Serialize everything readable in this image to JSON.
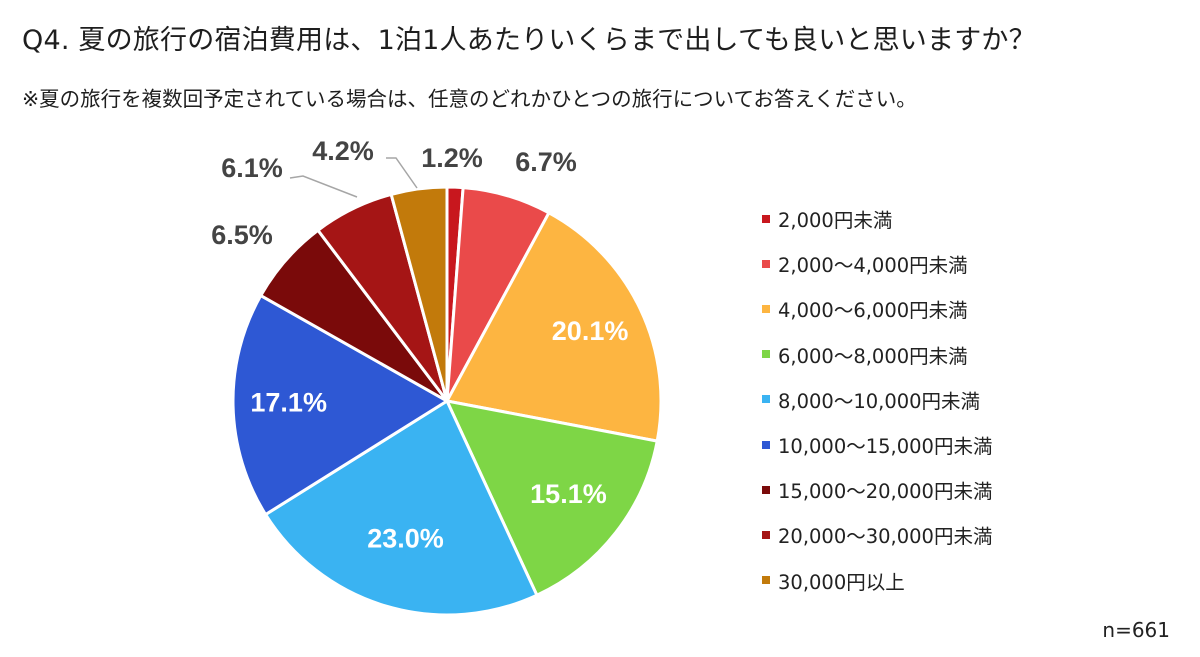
{
  "header": {
    "title": "Q4. 夏の旅行の宿泊費用は、1泊1人あたりいくらまで出しても良いと思いますか？",
    "subtitle": "※夏の旅行を複数回予定されている場合は、任意のどれかひとつの旅行についてお答えください。"
  },
  "chart_data": {
    "type": "pie",
    "title": "Q4. 夏の旅行の宿泊費用は、1泊1人あたりいくらまで出しても良いと思いますか？",
    "subtitle": "※夏の旅行を複数回予定されている場合は、任意のどれかひとつの旅行についてお答えください。",
    "legend_position": "right",
    "sample_size": "n=661",
    "slices": [
      {
        "label": "2,000円未満",
        "value": 1.2,
        "display": "1.2%",
        "color": "#C8171E"
      },
      {
        "label": "2,000～4,000円未満",
        "value": 6.7,
        "display": "6.7%",
        "color": "#EA4A4A"
      },
      {
        "label": "4,000～6,000円未満",
        "value": 20.1,
        "display": "20.1%",
        "color": "#FDB541"
      },
      {
        "label": "6,000～8,000円未満",
        "value": 15.1,
        "display": "15.1%",
        "color": "#7ED646"
      },
      {
        "label": "8,000～10,000円未満",
        "value": 23.0,
        "display": "23.0%",
        "color": "#3AB3F2"
      },
      {
        "label": "10,000～15,000円未満",
        "value": 17.1,
        "display": "17.1%",
        "color": "#2E58D4"
      },
      {
        "label": "15,000～20,000円未満",
        "value": 6.5,
        "display": "6.5%",
        "color": "#7A0A0A"
      },
      {
        "label": "20,000～30,000円未満",
        "value": 6.1,
        "display": "6.1%",
        "color": "#A51515"
      },
      {
        "label": "30,000円以上",
        "value": 4.2,
        "display": "4.2%",
        "color": "#C27A0B"
      }
    ]
  }
}
